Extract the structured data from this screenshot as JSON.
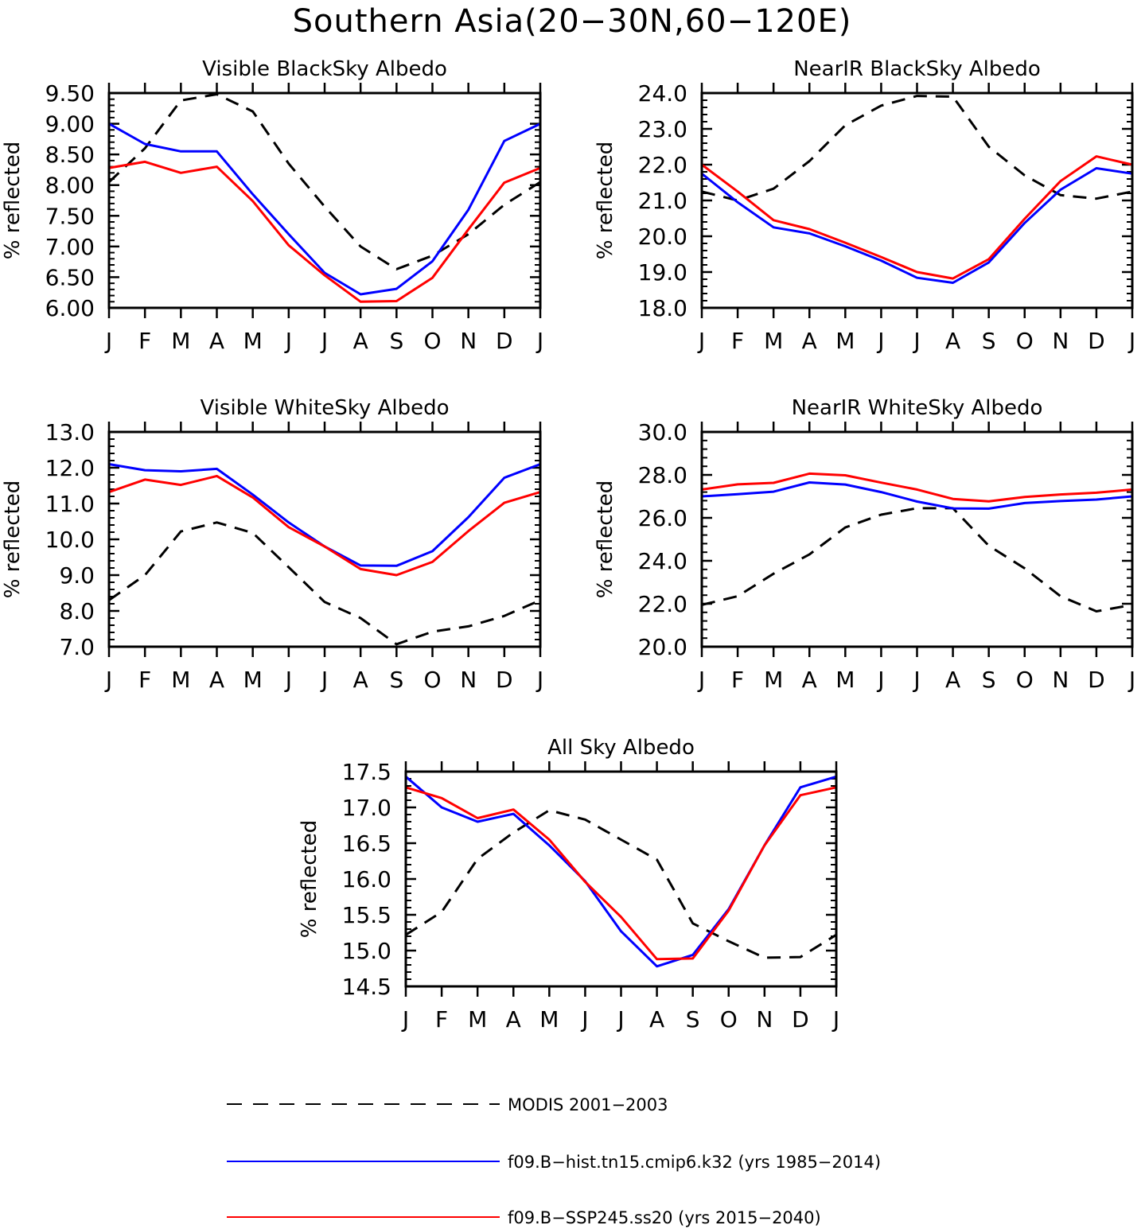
{
  "figure": {
    "title": "Southern Asia(20−30N,60−120E)",
    "colors": {
      "modis": "#000000",
      "hist": "#0000ff",
      "ssp": "#ff0000"
    }
  },
  "legend": [
    {
      "key": "modis",
      "label": "MODIS 2001−2003",
      "style": "dashed"
    },
    {
      "key": "hist",
      "label": "f09.B−hist.tn15.cmip6.k32 (yrs 1985−2014)",
      "style": "solid"
    },
    {
      "key": "ssp",
      "label": "f09.B−SSP245.ss20 (yrs 2015−2040)",
      "style": "solid"
    }
  ],
  "chart_data": [
    {
      "type": "line",
      "title": "Visible BlackSky Albedo",
      "ylabel": "% reflected",
      "x": [
        "J",
        "F",
        "M",
        "A",
        "M",
        "J",
        "J",
        "A",
        "S",
        "O",
        "N",
        "D",
        "J"
      ],
      "ylim": [
        6.0,
        9.5
      ],
      "yticks": [
        "6.00",
        "6.50",
        "7.00",
        "7.50",
        "8.00",
        "8.50",
        "9.00",
        "9.50"
      ],
      "series": [
        {
          "key": "modis",
          "values": [
            8.05,
            8.6,
            9.38,
            9.48,
            9.2,
            8.35,
            7.65,
            7.0,
            6.63,
            6.85,
            7.2,
            7.68,
            8.05
          ]
        },
        {
          "key": "hist",
          "values": [
            9.0,
            8.67,
            8.55,
            8.55,
            7.85,
            7.2,
            6.57,
            6.22,
            6.31,
            6.76,
            7.6,
            8.72,
            9.0
          ]
        },
        {
          "key": "ssp",
          "values": [
            8.28,
            8.38,
            8.2,
            8.3,
            7.74,
            7.02,
            6.53,
            6.1,
            6.11,
            6.49,
            7.28,
            8.04,
            8.28
          ]
        }
      ]
    },
    {
      "type": "line",
      "title": "NearIR BlackSky Albedo",
      "ylabel": "% reflected",
      "x": [
        "J",
        "F",
        "M",
        "A",
        "M",
        "J",
        "J",
        "A",
        "S",
        "O",
        "N",
        "D",
        "J"
      ],
      "ylim": [
        18.0,
        24.0
      ],
      "yticks": [
        "18.0",
        "19.0",
        "20.0",
        "21.0",
        "22.0",
        "23.0",
        "24.0"
      ],
      "series": [
        {
          "key": "modis",
          "values": [
            21.25,
            21.0,
            21.33,
            22.1,
            23.1,
            23.65,
            23.92,
            23.9,
            22.5,
            21.7,
            21.15,
            21.05,
            21.25
          ]
        },
        {
          "key": "hist",
          "values": [
            21.75,
            20.95,
            20.25,
            20.08,
            19.72,
            19.32,
            18.84,
            18.7,
            19.27,
            20.37,
            21.3,
            21.9,
            21.75
          ]
        },
        {
          "key": "ssp",
          "values": [
            22.0,
            21.25,
            20.45,
            20.2,
            19.82,
            19.42,
            19.0,
            18.82,
            19.36,
            20.49,
            21.54,
            22.23,
            22.0
          ]
        }
      ]
    },
    {
      "type": "line",
      "title": "Visible WhiteSky Albedo",
      "ylabel": "% reflected",
      "x": [
        "J",
        "F",
        "M",
        "A",
        "M",
        "J",
        "J",
        "A",
        "S",
        "O",
        "N",
        "D",
        "J"
      ],
      "ylim": [
        7.0,
        13.0
      ],
      "yticks": [
        "7.0",
        "8.0",
        "9.0",
        "10.0",
        "11.0",
        "12.0",
        "13.0"
      ],
      "series": [
        {
          "key": "modis",
          "values": [
            8.3,
            9.0,
            10.22,
            10.47,
            10.18,
            9.22,
            8.25,
            7.8,
            7.07,
            7.42,
            7.57,
            7.86,
            8.3
          ]
        },
        {
          "key": "hist",
          "values": [
            12.1,
            11.93,
            11.9,
            11.97,
            11.25,
            10.47,
            9.8,
            9.27,
            9.26,
            9.67,
            10.62,
            11.72,
            12.1
          ]
        },
        {
          "key": "ssp",
          "values": [
            11.32,
            11.67,
            11.52,
            11.77,
            11.17,
            10.34,
            9.8,
            9.17,
            9.0,
            9.37,
            10.23,
            11.02,
            11.32
          ]
        }
      ]
    },
    {
      "type": "line",
      "title": "NearIR WhiteSky Albedo",
      "ylabel": "% reflected",
      "x": [
        "J",
        "F",
        "M",
        "A",
        "M",
        "J",
        "J",
        "A",
        "S",
        "O",
        "N",
        "D",
        "J"
      ],
      "ylim": [
        20.0,
        30.0
      ],
      "yticks": [
        "20.0",
        "22.0",
        "24.0",
        "26.0",
        "28.0",
        "30.0"
      ],
      "series": [
        {
          "key": "modis",
          "values": [
            21.95,
            22.35,
            23.4,
            24.3,
            25.55,
            26.15,
            26.45,
            26.45,
            24.7,
            23.65,
            22.35,
            21.65,
            21.95
          ]
        },
        {
          "key": "hist",
          "values": [
            27.0,
            27.1,
            27.22,
            27.65,
            27.55,
            27.2,
            26.76,
            26.44,
            26.43,
            26.69,
            26.78,
            26.85,
            27.0
          ]
        },
        {
          "key": "ssp",
          "values": [
            27.32,
            27.56,
            27.63,
            28.06,
            27.98,
            27.64,
            27.32,
            26.88,
            26.77,
            26.97,
            27.09,
            27.17,
            27.32
          ]
        }
      ]
    },
    {
      "type": "line",
      "title": "All Sky Albedo",
      "ylabel": "% reflected",
      "x": [
        "J",
        "F",
        "M",
        "A",
        "M",
        "J",
        "J",
        "A",
        "S",
        "O",
        "N",
        "D",
        "J"
      ],
      "ylim": [
        14.5,
        17.5
      ],
      "yticks": [
        "14.5",
        "15.0",
        "15.5",
        "16.0",
        "16.5",
        "17.0",
        "17.5"
      ],
      "series": [
        {
          "key": "modis",
          "values": [
            15.22,
            15.54,
            16.28,
            16.65,
            16.96,
            16.83,
            16.55,
            16.27,
            15.38,
            15.13,
            14.9,
            14.91,
            15.22
          ]
        },
        {
          "key": "hist",
          "values": [
            17.43,
            17.0,
            16.8,
            16.91,
            16.47,
            15.97,
            15.27,
            14.78,
            14.94,
            15.58,
            16.47,
            17.28,
            17.43
          ]
        },
        {
          "key": "ssp",
          "values": [
            17.28,
            17.13,
            16.85,
            16.97,
            16.55,
            15.96,
            15.47,
            14.88,
            14.89,
            15.56,
            16.47,
            17.17,
            17.28
          ]
        }
      ]
    }
  ]
}
